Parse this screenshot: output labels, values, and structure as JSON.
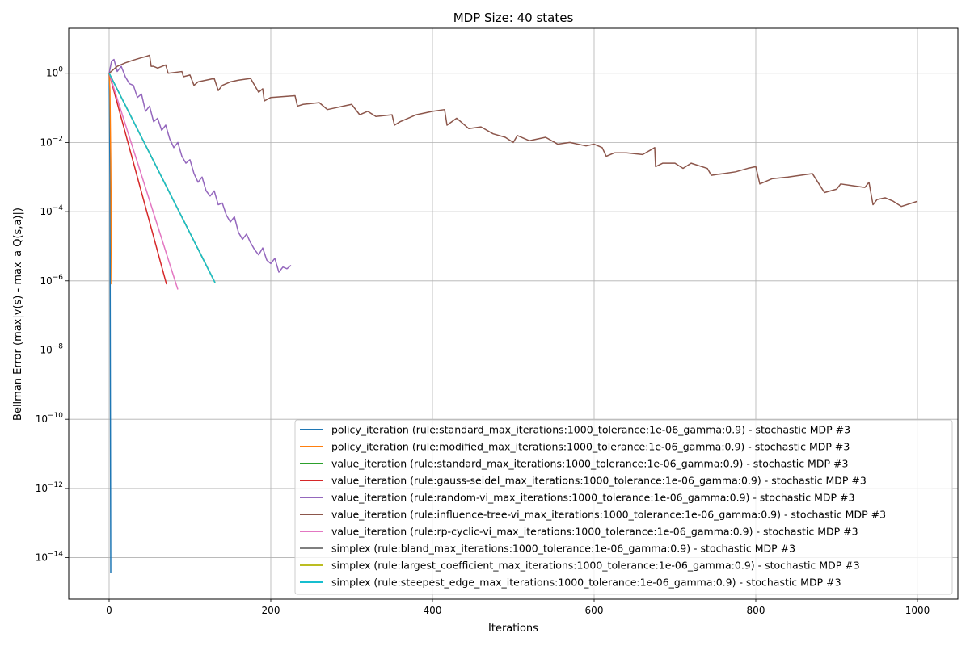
{
  "chart_data": {
    "type": "line",
    "title": "MDP Size: 40 states",
    "xlabel": "Iterations",
    "ylabel": "Bellman Error (max|v(s) - max_a Q(s,a)|)",
    "xlim": [
      -50,
      1050
    ],
    "ylim_log10": [
      -15.2,
      1.3
    ],
    "yscale": "log",
    "grid": true,
    "legend_position": "lower-right",
    "x_ticks": [
      0,
      200,
      400,
      600,
      800,
      1000
    ],
    "x_tick_labels": [
      "0",
      "200",
      "400",
      "600",
      "800",
      "1000"
    ],
    "y_ticks_log10": [
      0,
      -2,
      -4,
      -6,
      -8,
      -10,
      -12,
      -14
    ],
    "y_tick_bases": [
      "10",
      "10",
      "10",
      "10",
      "10",
      "10",
      "10",
      "10"
    ],
    "y_tick_exponents": [
      "0",
      "−2",
      "−4",
      "−6",
      "−8",
      "−10",
      "−12",
      "−14"
    ],
    "series": [
      {
        "name": "policy_iteration (rule:standard_max_iterations:1000_tolerance:1e-06_gamma:0.9) - stochastic MDP #3",
        "color": "#1f77b4",
        "x": [
          0,
          1,
          2
        ],
        "log10_y": [
          0.0,
          -3.0,
          -14.45
        ]
      },
      {
        "name": "policy_iteration (rule:modified_max_iterations:1000_tolerance:1e-06_gamma:0.9) - stochastic MDP #3",
        "color": "#ff7f0e",
        "x": [
          0,
          1,
          2,
          3
        ],
        "log10_y": [
          0.0,
          -0.5,
          -2.5,
          -6.1
        ]
      },
      {
        "name": "value_iteration (rule:standard_max_iterations:1000_tolerance:1e-06_gamma:0.9) - stochastic MDP #3",
        "color": "#2ca02c",
        "x": [
          0,
          131
        ],
        "log10_y": [
          0.0,
          -6.05
        ]
      },
      {
        "name": "value_iteration (rule:gauss-seidel_max_iterations:1000_tolerance:1e-06_gamma:0.9) - stochastic MDP #3",
        "color": "#d62728",
        "x": [
          0,
          71
        ],
        "log10_y": [
          0.0,
          -6.1
        ]
      },
      {
        "name": "value_iteration (rule:random-vi_max_iterations:1000_tolerance:1e-06_gamma:0.9) - stochastic MDP #3",
        "color": "#9467bd",
        "x": [
          0,
          3,
          6,
          10,
          15,
          20,
          25,
          30,
          35,
          40,
          45,
          50,
          55,
          60,
          65,
          70,
          75,
          80,
          85,
          90,
          95,
          100,
          105,
          110,
          115,
          120,
          125,
          130,
          135,
          140,
          145,
          150,
          155,
          160,
          165,
          170,
          175,
          180,
          185,
          190,
          195,
          200,
          205,
          210,
          215,
          220,
          225
        ],
        "log10_y": [
          0.0,
          0.35,
          0.4,
          0.05,
          0.2,
          -0.1,
          -0.3,
          -0.35,
          -0.7,
          -0.6,
          -1.1,
          -0.95,
          -1.4,
          -1.3,
          -1.65,
          -1.5,
          -1.9,
          -2.15,
          -2.0,
          -2.4,
          -2.6,
          -2.5,
          -2.9,
          -3.15,
          -3.0,
          -3.4,
          -3.55,
          -3.4,
          -3.8,
          -3.75,
          -4.1,
          -4.3,
          -4.15,
          -4.6,
          -4.8,
          -4.65,
          -4.9,
          -5.1,
          -5.25,
          -5.05,
          -5.4,
          -5.5,
          -5.35,
          -5.75,
          -5.6,
          -5.65,
          -5.55
        ]
      },
      {
        "name": "value_iteration (rule:influence-tree-vi_max_iterations:1000_tolerance:1e-06_gamma:0.9) - stochastic MDP #3",
        "color": "#8c564b",
        "x": [
          0,
          10,
          20,
          30,
          40,
          45,
          50,
          52,
          55,
          60,
          70,
          73,
          90,
          92,
          100,
          105,
          110,
          120,
          130,
          135,
          140,
          145,
          150,
          160,
          175,
          185,
          190,
          192,
          200,
          230,
          233,
          240,
          260,
          270,
          280,
          290,
          300,
          310,
          320,
          330,
          350,
          353,
          360,
          380,
          400,
          415,
          418,
          430,
          445,
          460,
          475,
          490,
          500,
          505,
          520,
          540,
          555,
          570,
          590,
          600,
          610,
          615,
          625,
          640,
          660,
          675,
          676,
          685,
          700,
          710,
          720,
          740,
          745,
          760,
          775,
          790,
          800,
          805,
          820,
          840,
          855,
          870,
          885,
          900,
          905,
          920,
          935,
          940,
          945,
          950,
          960,
          970,
          980,
          1000
        ],
        "log10_y": [
          0.0,
          0.2,
          0.3,
          0.38,
          0.45,
          0.48,
          0.52,
          0.2,
          0.2,
          0.15,
          0.24,
          0.0,
          0.05,
          -0.1,
          -0.05,
          -0.35,
          -0.25,
          -0.2,
          -0.15,
          -0.5,
          -0.35,
          -0.3,
          -0.25,
          -0.2,
          -0.15,
          -0.55,
          -0.45,
          -0.8,
          -0.7,
          -0.65,
          -0.95,
          -0.9,
          -0.85,
          -1.05,
          -1.0,
          -0.95,
          -0.9,
          -1.2,
          -1.1,
          -1.25,
          -1.2,
          -1.5,
          -1.4,
          -1.2,
          -1.1,
          -1.05,
          -1.5,
          -1.3,
          -1.6,
          -1.55,
          -1.75,
          -1.85,
          -2.0,
          -1.8,
          -1.95,
          -1.85,
          -2.05,
          -2.0,
          -2.1,
          -2.05,
          -2.15,
          -2.4,
          -2.3,
          -2.3,
          -2.35,
          -2.15,
          -2.7,
          -2.6,
          -2.6,
          -2.75,
          -2.6,
          -2.75,
          -2.95,
          -2.9,
          -2.85,
          -2.75,
          -2.7,
          -3.2,
          -3.05,
          -3.0,
          -2.95,
          -2.9,
          -3.45,
          -3.35,
          -3.2,
          -3.25,
          -3.3,
          -3.15,
          -3.8,
          -3.65,
          -3.6,
          -3.7,
          -3.85,
          -3.7
        ]
      },
      {
        "name": "value_iteration (rule:rp-cyclic-vi_max_iterations:1000_tolerance:1e-06_gamma:0.9) - stochastic MDP #3",
        "color": "#e377c2",
        "x": [
          0,
          85
        ],
        "log10_y": [
          0.0,
          -6.25
        ]
      },
      {
        "name": "simplex (rule:bland_max_iterations:1000_tolerance:1e-06_gamma:0.9) - stochastic MDP #3",
        "color": "#7f7f7f",
        "x": [
          0,
          131
        ],
        "log10_y": [
          0.0,
          -6.05
        ]
      },
      {
        "name": "simplex (rule:largest_coefficient_max_iterations:1000_tolerance:1e-06_gamma:0.9) - stochastic MDP #3",
        "color": "#bcbd22",
        "x": [
          0,
          131
        ],
        "log10_y": [
          0.0,
          -6.05
        ]
      },
      {
        "name": "simplex (rule:steepest_edge_max_iterations:1000_tolerance:1e-06_gamma:0.9) - stochastic MDP #3",
        "color": "#17becf",
        "x": [
          0,
          131
        ],
        "log10_y": [
          0.0,
          -6.05
        ]
      }
    ]
  }
}
